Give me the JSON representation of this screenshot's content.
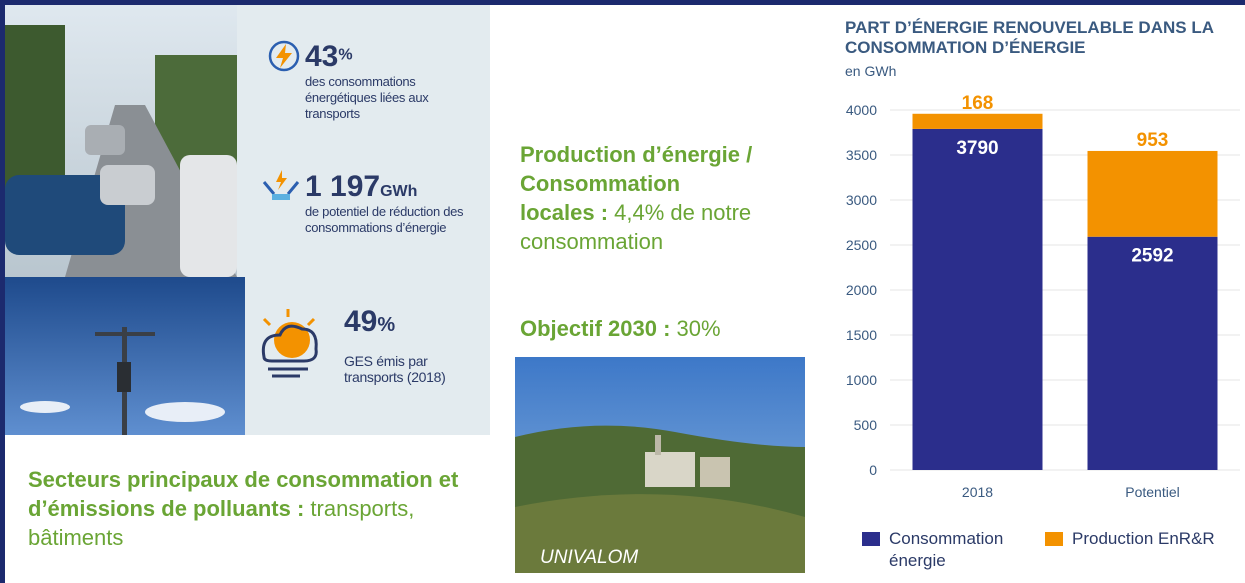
{
  "stats": [
    {
      "number": "43",
      "unit": "%",
      "text": "des consommations énergétiques liées aux transports"
    },
    {
      "number": "1 197",
      "unit": "GWh",
      "text": "de potentiel de réduction des consommations d’énergie"
    },
    {
      "number": "49",
      "unit": "%",
      "text": "GES émis par transports (2018)"
    }
  ],
  "production": {
    "heading": "Production d’énergie / Consommation locales :",
    "text": "4,4% de notre consommation"
  },
  "objective": {
    "heading": "Objectif 2030 :",
    "text": "30%"
  },
  "sectors": {
    "heading": "Secteurs principaux de consommation et d’émissions de polluants :",
    "text": "transports, bâtiments"
  },
  "photo_caption": "UNIVALOM",
  "chart_data": {
    "type": "stacked-bar",
    "title": "PART D’ÉNERGIE RENOUVELABLE DANS LA CONSOMMATION D’ÉNERGIE",
    "subtitle": "en GWh",
    "categories": [
      "2018",
      "Potentiel"
    ],
    "series": [
      {
        "name": "Consommation énergie",
        "color": "#2b2e8c",
        "values": [
          3790,
          2592
        ]
      },
      {
        "name": "Production EnR&R",
        "color": "#f39200",
        "values": [
          168,
          953
        ]
      }
    ],
    "ylim": [
      0,
      4000
    ],
    "yticks": [
      0,
      500,
      1000,
      1500,
      2000,
      2500,
      3000,
      3500,
      4000
    ],
    "grid": true
  }
}
